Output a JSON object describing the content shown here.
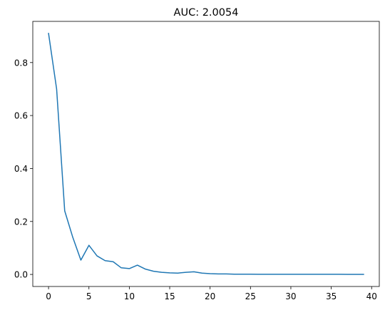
{
  "chart_data": {
    "type": "line",
    "title": "AUC: 2.0054",
    "xlabel": "",
    "ylabel": "",
    "xlim": [
      -1.95,
      40.95
    ],
    "ylim": [
      -0.0455,
      0.9555
    ],
    "xticks": [
      0,
      5,
      10,
      15,
      20,
      25,
      30,
      35,
      40
    ],
    "xtick_labels": [
      "0",
      "5",
      "10",
      "15",
      "20",
      "25",
      "30",
      "35",
      "40"
    ],
    "yticks": [
      0.0,
      0.2,
      0.4,
      0.6,
      0.8
    ],
    "ytick_labels": [
      "0.0",
      "0.2",
      "0.4",
      "0.6",
      "0.8"
    ],
    "grid": false,
    "legend": "none",
    "series": [
      {
        "color": "#1f77b4",
        "x": [
          0,
          1,
          2,
          3,
          4,
          5,
          6,
          7,
          8,
          9,
          10,
          11,
          12,
          13,
          14,
          15,
          16,
          17,
          18,
          19,
          20,
          21,
          22,
          23,
          24,
          25,
          26,
          27,
          28,
          29,
          30,
          31,
          32,
          33,
          34,
          35,
          36,
          37,
          38,
          39
        ],
        "y": [
          0.91,
          0.7,
          0.24,
          0.14,
          0.054,
          0.11,
          0.07,
          0.052,
          0.048,
          0.025,
          0.022,
          0.035,
          0.02,
          0.012,
          0.008,
          0.006,
          0.005,
          0.008,
          0.01,
          0.005,
          0.003,
          0.002,
          0.002,
          0.001,
          0.001,
          0.001,
          0.0005,
          0.0005,
          0.0005,
          0.0005,
          0.0005,
          0.0005,
          0.0005,
          0.0005,
          0.0005,
          0.0006,
          0.0005,
          0.0004,
          0.0003,
          0.0003
        ]
      }
    ]
  }
}
